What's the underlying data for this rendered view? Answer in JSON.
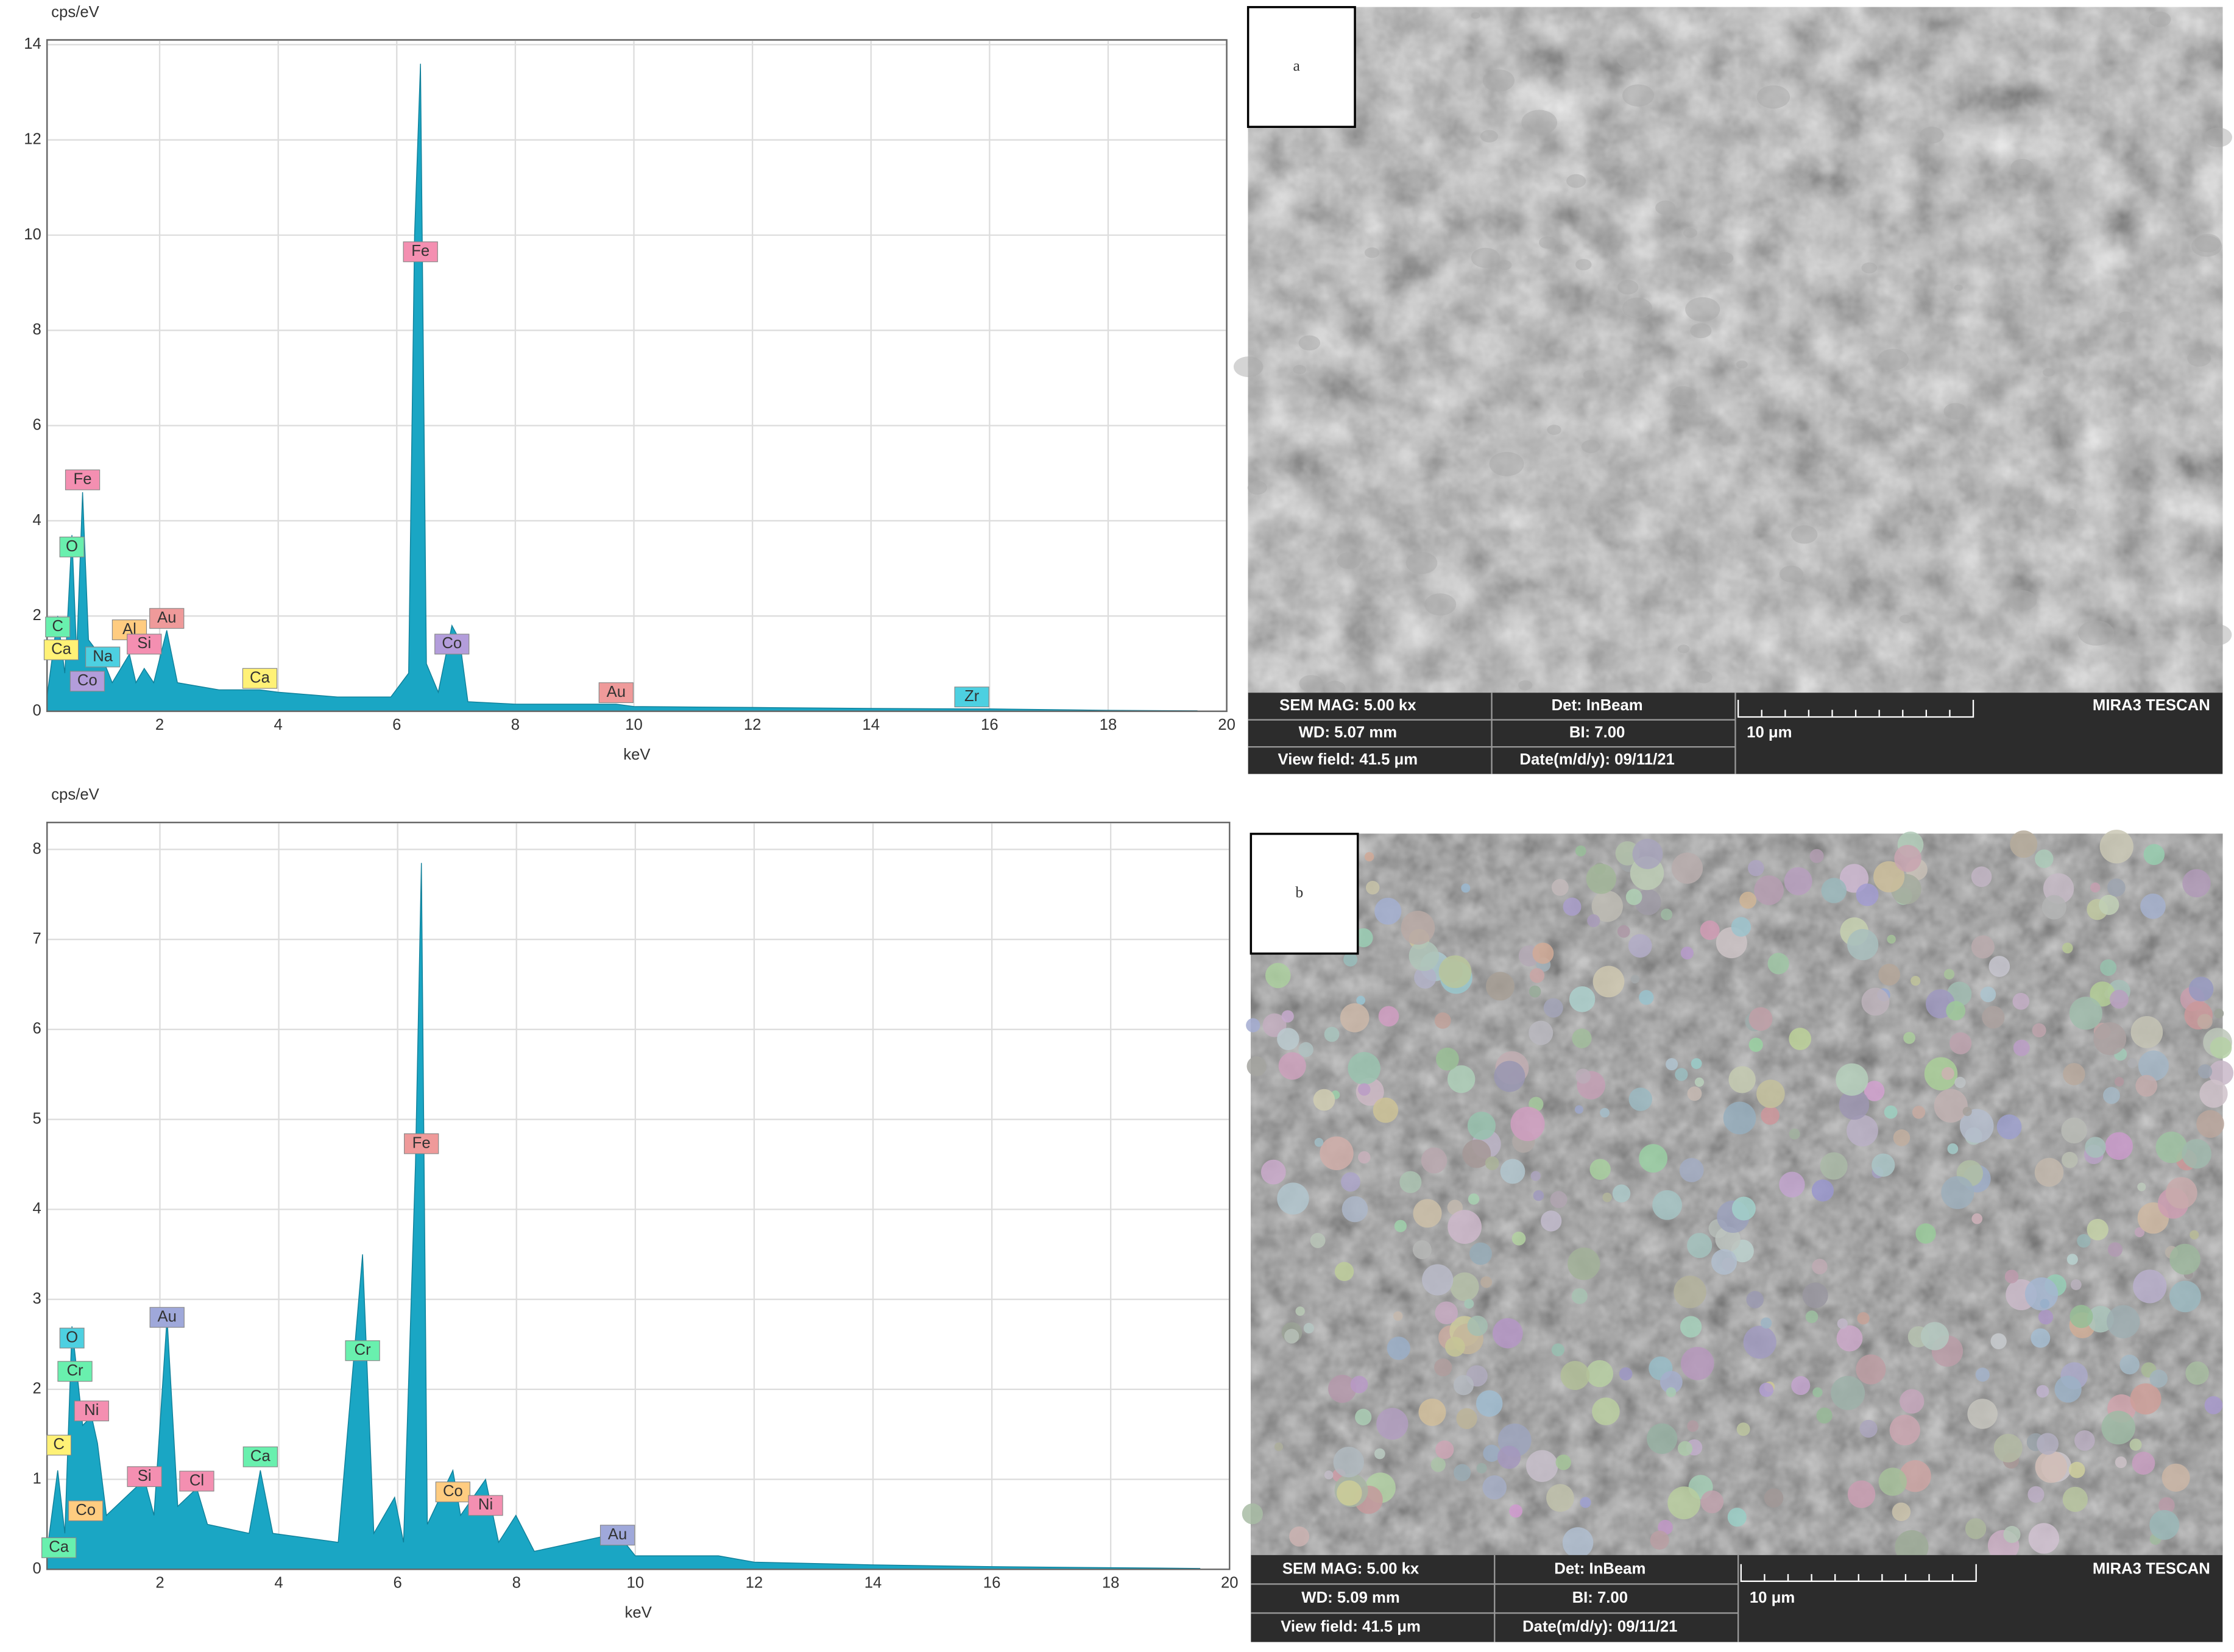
{
  "chart_data": [
    {
      "type": "area",
      "y_label": "cps/eV",
      "x_label": "keV",
      "x": [
        0.1,
        0.28,
        0.4,
        0.52,
        0.6,
        0.7,
        0.8,
        1.04,
        1.2,
        1.49,
        1.6,
        1.74,
        1.9,
        2.12,
        2.3,
        3.0,
        3.69,
        4.0,
        5.0,
        5.9,
        6.2,
        6.3,
        6.4,
        6.5,
        6.7,
        6.93,
        7.06,
        7.2,
        8.0,
        9.7,
        10.0,
        12.0,
        14.0,
        15.7,
        16.0,
        18.0,
        19.5
      ],
      "series": [
        {
          "color": "#1aa6c4",
          "values": [
            0.3,
            2.0,
            0.8,
            3.7,
            1.2,
            4.6,
            1.5,
            1.1,
            0.6,
            1.2,
            0.6,
            0.9,
            0.6,
            1.7,
            0.6,
            0.45,
            0.45,
            0.4,
            0.3,
            0.3,
            0.8,
            10,
            13.6,
            1.0,
            0.4,
            1.8,
            1.5,
            0.2,
            0.15,
            0.15,
            0.1,
            0.08,
            0.06,
            0.05,
            0.05,
            0.02,
            0.01
          ]
        }
      ],
      "xlim": [
        0.1,
        20
      ],
      "ylim": [
        0,
        14.1
      ],
      "xticks": [
        2,
        4,
        6,
        8,
        10,
        12,
        14,
        16,
        18,
        20
      ],
      "yticks": [
        0,
        2,
        4,
        6,
        8,
        10,
        12,
        14
      ],
      "grid": true,
      "annotations": [
        {
          "text": "Fe",
          "x": 0.7,
          "y": 4.86,
          "color": "#f48fb1"
        },
        {
          "text": "O",
          "x": 0.52,
          "y": 3.45,
          "color": "#69f0ae"
        },
        {
          "text": "C",
          "x": 0.28,
          "y": 1.77,
          "color": "#69f0ae"
        },
        {
          "text": "Ca",
          "x": 0.34,
          "y": 1.29,
          "color": "#fff176"
        },
        {
          "text": "Na",
          "x": 1.04,
          "y": 1.14,
          "color": "#4dd0e1"
        },
        {
          "text": "Co",
          "x": 0.78,
          "y": 0.63,
          "color": "#b39ddb"
        },
        {
          "text": "Al",
          "x": 1.49,
          "y": 1.71,
          "color": "#ffcc80"
        },
        {
          "text": "Au",
          "x": 2.12,
          "y": 1.95,
          "color": "#ef9a9a"
        },
        {
          "text": "Si",
          "x": 1.74,
          "y": 1.41,
          "color": "#f48fb1"
        },
        {
          "text": "Ca",
          "x": 3.69,
          "y": 0.69,
          "color": "#fff176"
        },
        {
          "text": "Fe",
          "x": 6.4,
          "y": 9.65,
          "color": "#f48fb1"
        },
        {
          "text": "Co",
          "x": 6.93,
          "y": 1.41,
          "color": "#b39ddb"
        },
        {
          "text": "Au",
          "x": 9.7,
          "y": 0.39,
          "color": "#ef9a9a"
        },
        {
          "text": "Zr",
          "x": 15.7,
          "y": 0.3,
          "color": "#4dd0e1"
        }
      ]
    },
    {
      "type": "area",
      "y_label": "cps/eV",
      "x_label": "keV",
      "x": [
        0.1,
        0.28,
        0.4,
        0.52,
        0.57,
        0.7,
        0.85,
        0.95,
        1.1,
        1.74,
        1.9,
        2.12,
        2.3,
        2.62,
        2.8,
        3.5,
        3.69,
        3.9,
        5.0,
        5.41,
        5.6,
        5.95,
        6.1,
        6.3,
        6.4,
        6.5,
        6.93,
        7.06,
        7.48,
        7.7,
        7.99,
        8.3,
        9.7,
        10.0,
        11.4,
        12.0,
        14.0,
        16.0,
        19.5
      ],
      "series": [
        {
          "color": "#1aa6c4",
          "values": [
            0.2,
            1.1,
            0.4,
            2.7,
            2.4,
            1.6,
            1.7,
            1.4,
            0.6,
            1.0,
            0.6,
            2.8,
            0.7,
            0.9,
            0.5,
            0.4,
            1.1,
            0.4,
            0.3,
            3.5,
            0.4,
            0.8,
            0.3,
            4.5,
            7.85,
            0.5,
            1.1,
            0.6,
            1.0,
            0.3,
            0.6,
            0.2,
            0.4,
            0.15,
            0.15,
            0.08,
            0.05,
            0.03,
            0.01
          ]
        }
      ],
      "xlim": [
        0.1,
        20
      ],
      "ylim": [
        0,
        8.3
      ],
      "xticks": [
        2,
        4,
        6,
        8,
        10,
        12,
        14,
        16,
        18,
        20
      ],
      "yticks": [
        0,
        1,
        2,
        3,
        4,
        5,
        6,
        7,
        8
      ],
      "grid": true,
      "annotations": [
        {
          "text": "Au",
          "x": 2.12,
          "y": 2.8,
          "color": "#9fa8da"
        },
        {
          "text": "O",
          "x": 0.52,
          "y": 2.57,
          "color": "#4dd0e1"
        },
        {
          "text": "Cr",
          "x": 0.57,
          "y": 2.2,
          "color": "#69f0ae"
        },
        {
          "text": "Ni",
          "x": 0.85,
          "y": 1.76,
          "color": "#f48fb1"
        },
        {
          "text": "C",
          "x": 0.3,
          "y": 1.38,
          "color": "#fff176"
        },
        {
          "text": "Co",
          "x": 0.75,
          "y": 0.65,
          "color": "#ffcc80"
        },
        {
          "text": "Ca",
          "x": 0.3,
          "y": 0.24,
          "color": "#69f0ae"
        },
        {
          "text": "Si",
          "x": 1.74,
          "y": 1.03,
          "color": "#f48fb1"
        },
        {
          "text": "Cl",
          "x": 2.62,
          "y": 0.98,
          "color": "#f48fb1"
        },
        {
          "text": "Ca",
          "x": 3.69,
          "y": 1.25,
          "color": "#69f0ae"
        },
        {
          "text": "Cr",
          "x": 5.41,
          "y": 2.43,
          "color": "#69f0ae"
        },
        {
          "text": "Fe",
          "x": 6.4,
          "y": 4.73,
          "color": "#ef9a9a"
        },
        {
          "text": "Co",
          "x": 6.93,
          "y": 0.86,
          "color": "#ffcc80"
        },
        {
          "text": "Ni",
          "x": 7.48,
          "y": 0.71,
          "color": "#f48fb1"
        },
        {
          "text": "Au",
          "x": 9.7,
          "y": 0.38,
          "color": "#9fa8da"
        }
      ]
    }
  ],
  "panels": [
    {
      "label": "a",
      "info": [
        [
          "SEM MAG: 5.00 kx",
          "Det: InBeam",
          "MIRA3 TESCAN"
        ],
        [
          "WD: 5.07 mm",
          "BI: 7.00",
          "10 μm"
        ],
        [
          "View field: 41.5 μm",
          "Date(m/d/y): 09/11/21"
        ]
      ]
    },
    {
      "label": "b",
      "info": [
        [
          "SEM MAG: 5.00 kx",
          "Det: InBeam",
          "MIRA3 TESCAN"
        ],
        [
          "WD: 5.09 mm",
          "BI: 7.00",
          "10 μm"
        ],
        [
          "View field: 41.5 μm",
          "Date(m/d/y): 09/11/21"
        ]
      ]
    }
  ]
}
